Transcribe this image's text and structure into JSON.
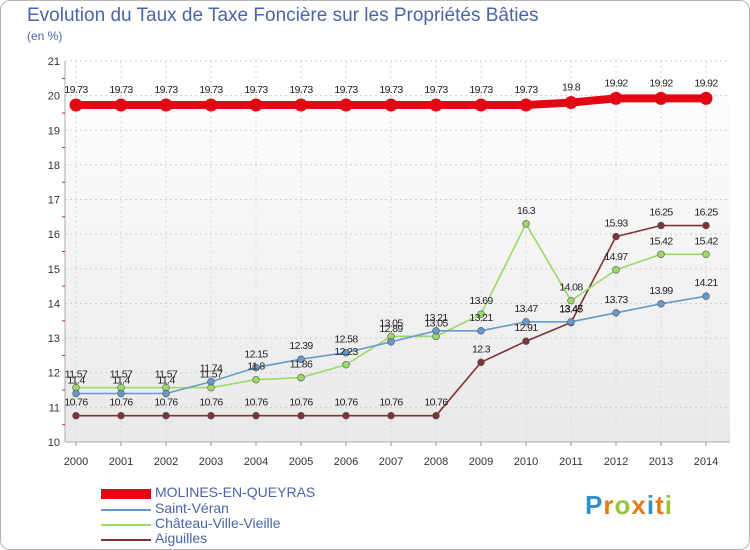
{
  "header": {
    "title": "Evolution du Taux de Taxe Foncière sur les Propriétés Bâties",
    "unit": "(en %)"
  },
  "logo": {
    "letters": [
      "P",
      "r",
      "o",
      "x",
      "i",
      "t",
      "i"
    ],
    "colors": [
      "#2f8fd0",
      "#e07b1c",
      "#9bc23a",
      "#e07b1c",
      "#2f8fd0",
      "#e07b1c",
      "#9bc23a"
    ]
  },
  "chart_data": {
    "type": "line",
    "title": "Evolution du Taux de Taxe Foncière sur les Propriétés Bâties",
    "ylabel": "(en %)",
    "xlabel": "",
    "ylim": [
      10,
      21
    ],
    "yticks": [
      10,
      11,
      12,
      13,
      14,
      15,
      16,
      17,
      18,
      19,
      20,
      21
    ],
    "x": [
      "2000",
      "2001",
      "2002",
      "2003",
      "2004",
      "2005",
      "2006",
      "2007",
      "2008",
      "2009",
      "2010",
      "2011",
      "2012",
      "2013",
      "2014"
    ],
    "grid": true,
    "series": [
      {
        "name": "MOLINES-EN-QUEYRAS",
        "color": "#e30613",
        "values": [
          19.73,
          19.73,
          19.73,
          19.73,
          19.73,
          19.73,
          19.73,
          19.73,
          19.73,
          19.73,
          19.73,
          19.8,
          19.92,
          19.92,
          19.92
        ],
        "labels": [
          "19.73",
          "19.73",
          "19.73",
          "19.73",
          "19.73",
          "19.73",
          "19.73",
          "19.73",
          "19.73",
          "19.73",
          "19.73",
          "19.8",
          "19.92",
          "19.92",
          "19.92"
        ]
      },
      {
        "name": "Saint-Véran",
        "color": "#6699cc",
        "values": [
          11.4,
          11.4,
          11.4,
          11.74,
          12.15,
          12.39,
          12.58,
          12.89,
          13.21,
          13.21,
          13.47,
          13.47,
          13.73,
          13.99,
          14.21
        ],
        "labels": [
          "11.4",
          "11.4",
          "11.4",
          "11.74",
          "12.15",
          "12.39",
          "12.58",
          "12.89",
          "13.21",
          "13.21",
          "13.47",
          "13.47",
          "13.73",
          "13.99",
          "14.21"
        ]
      },
      {
        "name": "Château-Ville-Vieille",
        "color": "#99d966",
        "values": [
          11.57,
          11.57,
          11.57,
          11.57,
          11.8,
          11.86,
          12.23,
          13.05,
          13.05,
          13.69,
          16.3,
          14.08,
          14.97,
          15.42,
          15.42
        ],
        "labels": [
          "11.57",
          "11.57",
          "11.57",
          "11.57",
          "11.8",
          "11.86",
          "12.23",
          "13.05",
          "13.05",
          "13.69",
          "16.3",
          "14.08",
          "14.97",
          "15.42",
          "15.42"
        ]
      },
      {
        "name": "Aiguilles",
        "color": "#7f3333",
        "values": [
          10.76,
          10.76,
          10.76,
          10.76,
          10.76,
          10.76,
          10.76,
          10.76,
          10.76,
          12.3,
          12.91,
          13.45,
          15.93,
          16.25,
          16.25
        ],
        "labels": [
          "10.76",
          "10.76",
          "10.76",
          "10.76",
          "10.76",
          "10.76",
          "10.76",
          "10.76",
          "10.76",
          "12.3",
          "12.91",
          "13.45",
          "15.93",
          "16.25",
          "16.25"
        ]
      }
    ]
  }
}
